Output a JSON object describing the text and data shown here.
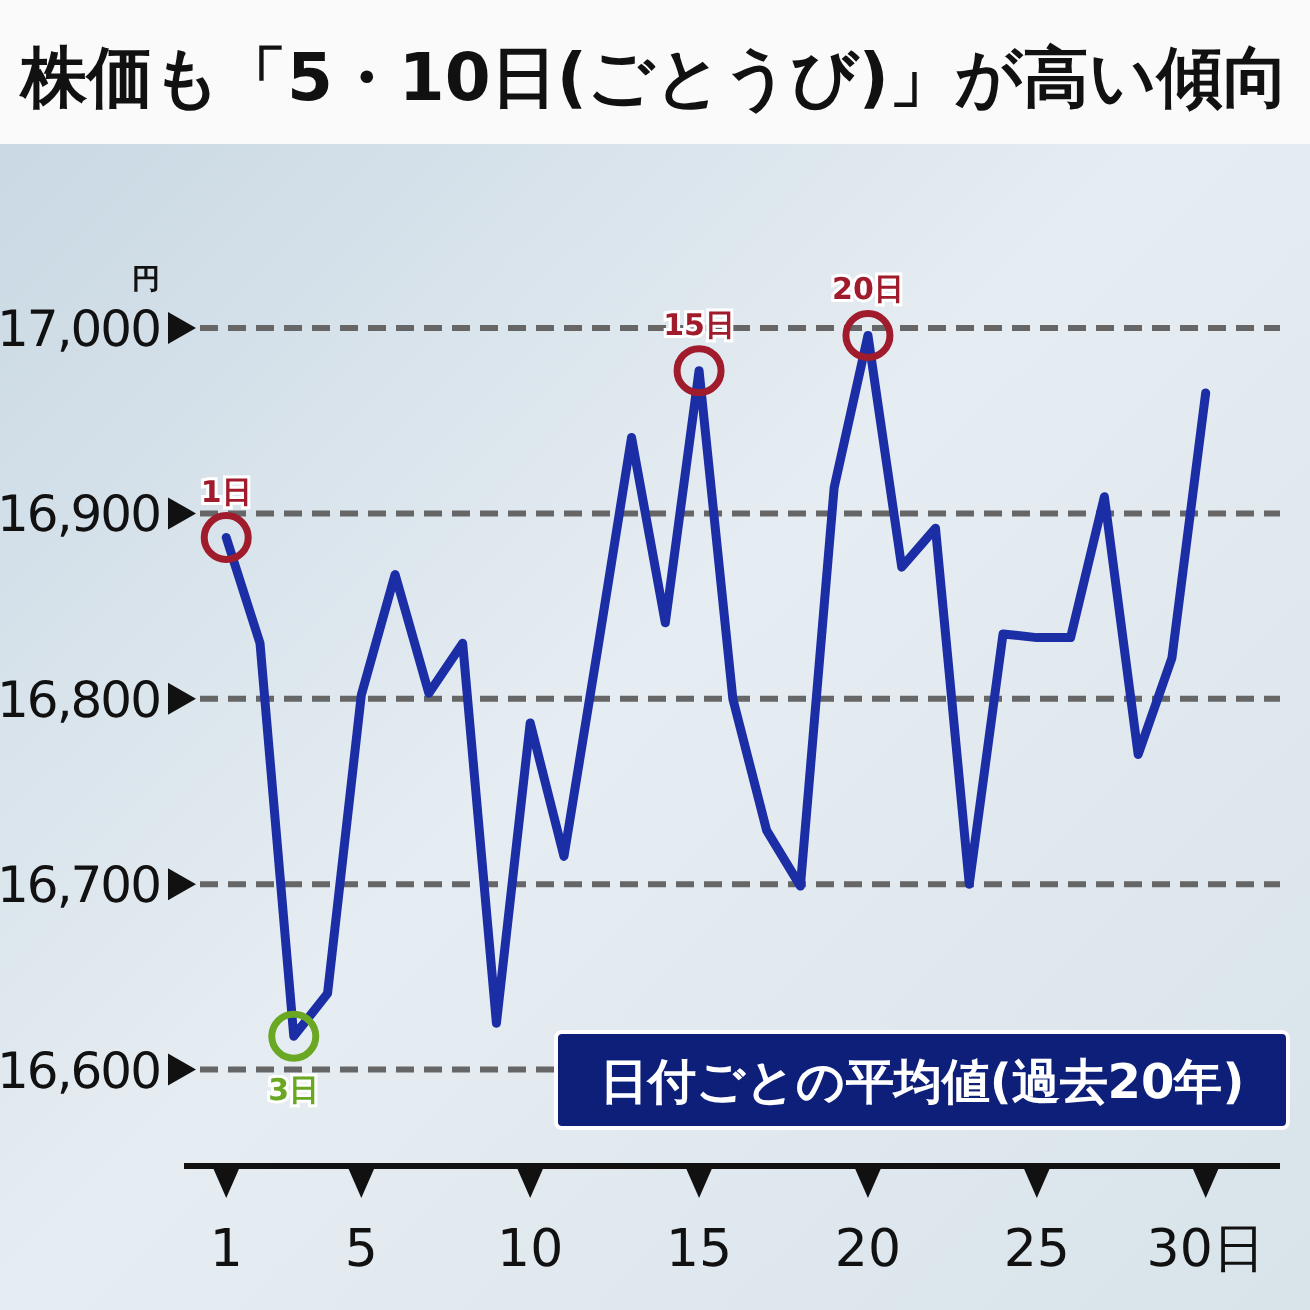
{
  "chart_data": {
    "type": "line",
    "title": "株価も「5・10日(ごとうび)」が高い傾向",
    "ylabel": "円",
    "x": [
      1,
      2,
      3,
      4,
      5,
      6,
      7,
      8,
      9,
      10,
      11,
      12,
      13,
      14,
      15,
      16,
      17,
      18,
      19,
      20,
      21,
      22,
      23,
      24,
      25,
      26,
      27,
      28,
      29,
      30
    ],
    "series": [
      {
        "color": "#1c2ea6",
        "values": [
          16887,
          16830,
          16618,
          16641,
          16802,
          16867,
          16803,
          16830,
          16625,
          16787,
          16715,
          16827,
          16941,
          16841,
          16977,
          16800,
          16729,
          16699,
          16914,
          16996,
          16871,
          16892,
          16700,
          16835,
          16833,
          16833,
          16909,
          16770,
          16822,
          16965
        ]
      }
    ],
    "xlim": [
      -0.25,
      32.2
    ],
    "xticks": [
      1,
      5,
      10,
      15,
      20,
      25,
      {
        "value": 30,
        "label": "30日"
      }
    ],
    "ylim": [
      16548,
      17000
    ],
    "yticks": [
      {
        "value": 16600,
        "label": "16,600"
      },
      {
        "value": 16700,
        "label": "16,700"
      },
      {
        "value": 16800,
        "label": "16,800"
      },
      {
        "value": 16900,
        "label": "16,900"
      },
      {
        "value": 17000,
        "label": "17,000"
      }
    ],
    "grid": "y",
    "line_style": "solid",
    "marker": "none",
    "annotations": [
      {
        "text": "1日",
        "x": 1,
        "y": 16887
      },
      {
        "text": "3日",
        "x": 3,
        "y": 16618
      },
      {
        "text": "15日",
        "x": 15,
        "y": 16977
      },
      {
        "text": "20日",
        "x": 20,
        "y": 16996
      },
      "日付ごとの平均値(過去20年)"
    ]
  }
}
